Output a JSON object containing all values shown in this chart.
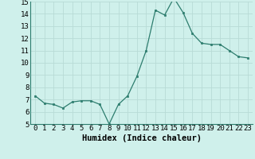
{
  "x": [
    0,
    1,
    2,
    3,
    4,
    5,
    6,
    7,
    8,
    9,
    10,
    11,
    12,
    13,
    14,
    15,
    16,
    17,
    18,
    19,
    20,
    21,
    22,
    23
  ],
  "y": [
    7.3,
    6.7,
    6.6,
    6.3,
    6.8,
    6.9,
    6.9,
    6.6,
    5.0,
    6.6,
    7.3,
    8.9,
    11.0,
    14.3,
    13.9,
    15.3,
    14.1,
    12.4,
    11.6,
    11.5,
    11.5,
    11.0,
    10.5,
    10.4
  ],
  "xlabel": "Humidex (Indice chaleur)",
  "ylim": [
    5,
    15
  ],
  "yticks": [
    5,
    6,
    7,
    8,
    9,
    10,
    11,
    12,
    13,
    14,
    15
  ],
  "xticks": [
    0,
    1,
    2,
    3,
    4,
    5,
    6,
    7,
    8,
    9,
    10,
    11,
    12,
    13,
    14,
    15,
    16,
    17,
    18,
    19,
    20,
    21,
    22,
    23
  ],
  "line_color": "#2d7d6e",
  "marker_color": "#2d7d6e",
  "bg_color": "#cff0eb",
  "grid_color": "#b8dbd6",
  "axis_label_fontsize": 7.5,
  "tick_fontsize": 6.5
}
